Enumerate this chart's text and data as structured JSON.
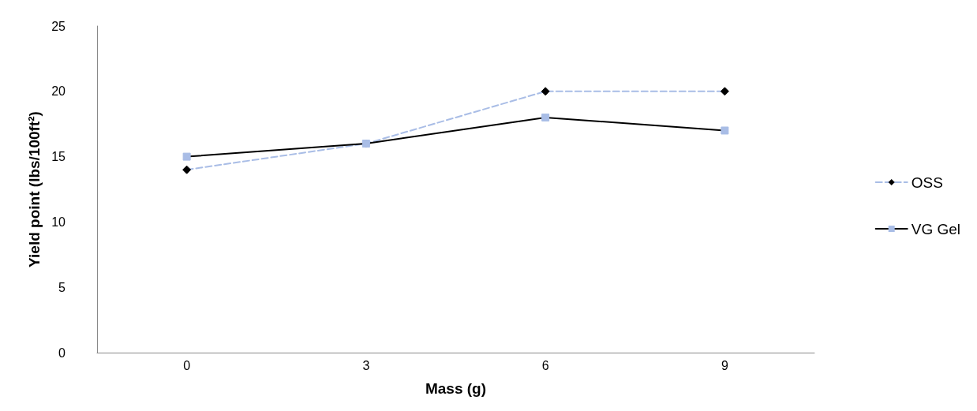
{
  "chart_data": {
    "type": "line",
    "xlabel": "Mass (g)",
    "ylabel": "Yield point (lbs/100ft²)",
    "categories": [
      "0",
      "3",
      "6",
      "9"
    ],
    "ylim": [
      0,
      25
    ],
    "yticks": [
      0,
      5,
      10,
      15,
      20,
      25
    ],
    "grid": false,
    "legend": "right",
    "series": [
      {
        "name": "OSS",
        "color": "#a9bde6",
        "values": [
          14,
          16,
          20,
          20
        ],
        "marker": "diamond",
        "line_style": "dashed"
      },
      {
        "name": "VG Gel",
        "color": "#000000",
        "values": [
          15,
          16,
          18,
          17
        ],
        "marker": "square",
        "line_style": "solid"
      }
    ]
  }
}
